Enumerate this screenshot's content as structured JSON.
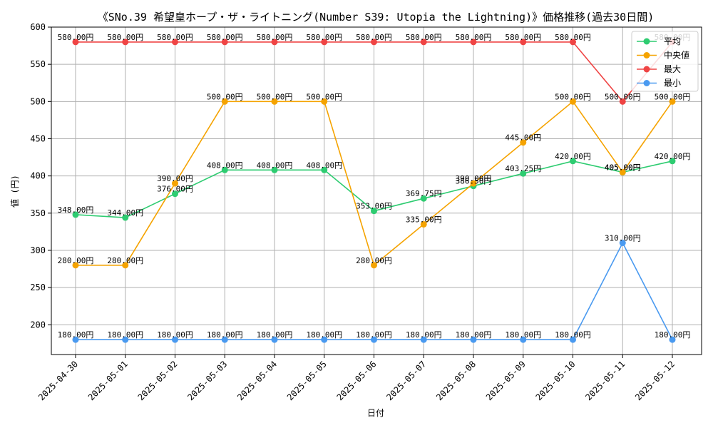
{
  "chart_data": {
    "type": "line",
    "title": "《SNo.39 希望皇ホープ・ザ・ライトニング(Number S39: Utopia the Lightning)》価格推移(過去30日間)",
    "xlabel": "日付",
    "ylabel": "値 (円)",
    "ylim": [
      160,
      600
    ],
    "yticks": [
      200,
      250,
      300,
      350,
      400,
      450,
      500,
      550,
      600
    ],
    "grid": true,
    "legend_position": "top-right",
    "value_suffix": "円",
    "categories": [
      "2025-04-30",
      "2025-05-01",
      "2025-05-02",
      "2025-05-03",
      "2025-05-04",
      "2025-05-05",
      "2025-05-06",
      "2025-05-07",
      "2025-05-08",
      "2025-05-09",
      "2025-05-10",
      "2025-05-11",
      "2025-05-12"
    ],
    "series": [
      {
        "name": "平均",
        "color": "#2ecc71",
        "values": [
          348.0,
          344.0,
          376.0,
          408.0,
          408.0,
          408.0,
          353.0,
          369.75,
          386.5,
          403.25,
          420.0,
          405.0,
          420.0
        ]
      },
      {
        "name": "中央値",
        "color": "#f5a300",
        "values": [
          280.0,
          280.0,
          390.0,
          500.0,
          500.0,
          500.0,
          280.0,
          335.0,
          390.0,
          445.0,
          500.0,
          405.0,
          500.0
        ]
      },
      {
        "name": "最大",
        "color": "#ef4444",
        "values": [
          580.0,
          580.0,
          580.0,
          580.0,
          580.0,
          580.0,
          580.0,
          580.0,
          580.0,
          580.0,
          580.0,
          500.0,
          580.0
        ]
      },
      {
        "name": "最小",
        "color": "#4a9af0",
        "values": [
          180.0,
          180.0,
          180.0,
          180.0,
          180.0,
          180.0,
          180.0,
          180.0,
          180.0,
          180.0,
          180.0,
          310.0,
          180.0
        ]
      }
    ]
  }
}
